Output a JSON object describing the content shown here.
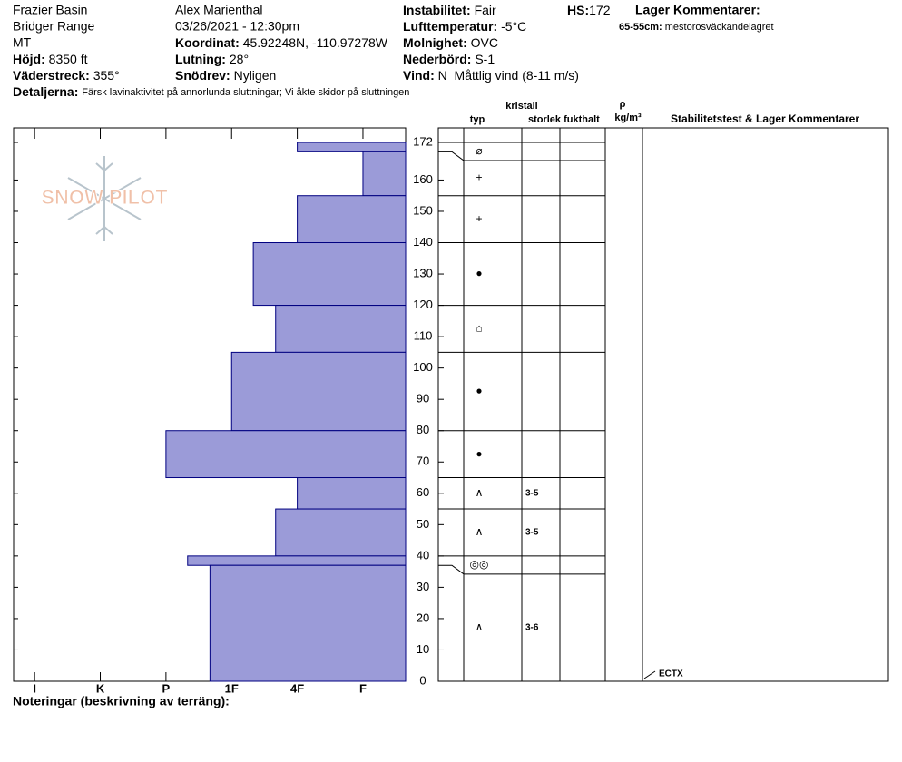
{
  "header": {
    "location": "Frazier Basin",
    "range": "Bridger Range",
    "state": "MT",
    "elevation": {
      "label": "Höjd:",
      "value": "8350 ft"
    },
    "aspect": {
      "label": "Väderstreck:",
      "value": "355°"
    },
    "observer": "Alex Marienthal",
    "datetime": "03/26/2021 - 12:30pm",
    "coordinates": {
      "label": "Koordinat:",
      "value": "45.92248N, -110.97278W"
    },
    "slope": {
      "label": "Lutning:",
      "value": "28°"
    },
    "wind_loading": {
      "label": "Snödrev:",
      "value": "Nyligen"
    },
    "instability": {
      "label": "Instabilitet:",
      "value": "Fair"
    },
    "air_temp": {
      "label": "Lufttemperatur:",
      "value": "-5°C"
    },
    "sky": {
      "label": "Molnighet:",
      "value": "OVC"
    },
    "precip": {
      "label": "Nederbörd:",
      "value": "S-1"
    },
    "wind": {
      "label": "Vind:",
      "value": "N  Måttlig vind (8-11 m/s)"
    },
    "hs": {
      "label": "HS:",
      "value": "172"
    },
    "layer_comments": {
      "title": "Lager Kommentarer:",
      "items": [
        {
          "label": "65-55cm:",
          "value": "mestorosväckandelagret"
        }
      ]
    },
    "details": {
      "label": "Detaljerna:",
      "value": "Färsk lavinaktivitet på annorlunda sluttningar; Vi åkte skidor på sluttningen"
    }
  },
  "logo": "SNOW PILOT",
  "chart_data": {
    "type": "bar",
    "orientation": "horizontal",
    "color": "#9b9bd8",
    "tops": [
      172,
      169,
      155,
      140,
      120,
      105,
      80,
      65,
      55,
      40,
      37
    ],
    "bottoms": [
      169,
      155,
      140,
      120,
      105,
      80,
      65,
      55,
      40,
      37,
      0
    ],
    "values": [
      2,
      1,
      2,
      2.67,
      2.33,
      3,
      4,
      2,
      2.33,
      3.67,
      3.33
    ],
    "ylim": [
      0,
      172
    ],
    "yticks": [
      0,
      10,
      20,
      30,
      40,
      50,
      60,
      70,
      80,
      90,
      100,
      110,
      120,
      130,
      140,
      150,
      160,
      172
    ],
    "xlim": [
      6.32,
      0.35
    ],
    "xticks": [
      {
        "value": 6,
        "label": "I"
      },
      {
        "value": 5,
        "label": "K"
      },
      {
        "value": 4,
        "label": "P"
      },
      {
        "value": 3,
        "label": "1F"
      },
      {
        "value": 2,
        "label": "4F"
      },
      {
        "value": 1,
        "label": "F"
      }
    ]
  },
  "table": {
    "headers": {
      "crystal": "kristall",
      "type": "typ",
      "size": "storlek",
      "moisture": "fukthalt",
      "density_symbol": "ρ",
      "density_unit": "kg/m³",
      "stability": "Stabilitetstest & Lager Kommentarer"
    },
    "grain_types": [
      "⌀",
      "+",
      "+",
      "●",
      "⌂",
      "●",
      "●",
      "∧",
      "∧",
      "◎◎",
      "∧"
    ],
    "grain_sizes": [
      null,
      null,
      null,
      null,
      null,
      null,
      null,
      "3-5",
      "3-5",
      null,
      "3-6"
    ],
    "stability_tests": [
      "ECTX"
    ]
  },
  "notes_label": "Noteringar (beskrivning av terräng):"
}
